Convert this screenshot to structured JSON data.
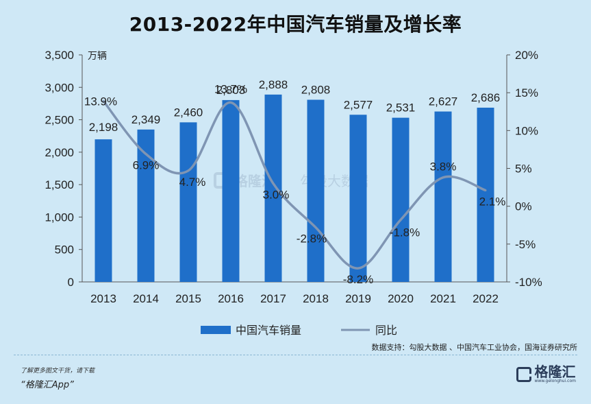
{
  "title": "2013-2022年中国汽车销量及增长率",
  "chart_data": {
    "type": "bar",
    "categories": [
      "2013",
      "2014",
      "2015",
      "2016",
      "2017",
      "2018",
      "2019",
      "2020",
      "2021",
      "2022"
    ],
    "series": [
      {
        "name": "中国汽车销量",
        "type": "bar",
        "axis": "left",
        "values": [
          2198,
          2349,
          2460,
          2803,
          2888,
          2808,
          2577,
          2531,
          2627,
          2686
        ],
        "labels": [
          "2,198",
          "2,349",
          "2,460",
          "2,803",
          "2,888",
          "2,808",
          "2,577",
          "2,531",
          "2,627",
          "2,686"
        ]
      },
      {
        "name": "同比",
        "type": "line",
        "axis": "right",
        "values": [
          13.9,
          6.9,
          4.7,
          13.7,
          3.0,
          -2.8,
          -8.2,
          -1.8,
          3.8,
          2.1
        ],
        "labels": [
          "13.9%",
          "6.9%",
          "4.7%",
          "13.7%",
          "3.0%",
          "-2.8%",
          "-8.2%",
          "-1.8%",
          "3.8%",
          "2.1%"
        ]
      }
    ],
    "y_left": {
      "unit": "万辆",
      "min": 0,
      "max": 3500,
      "ticks": [
        0,
        500,
        1000,
        1500,
        2000,
        2500,
        3000,
        3500
      ],
      "tick_labels": [
        "0",
        "500",
        "1,000",
        "1,500",
        "2,000",
        "2,500",
        "3,000",
        "3,500"
      ]
    },
    "y_right": {
      "min": -10,
      "max": 20,
      "ticks": [
        -10,
        -5,
        0,
        5,
        10,
        15,
        20
      ],
      "tick_labels": [
        "-10%",
        "-5%",
        "0%",
        "5%",
        "10%",
        "15%",
        "20%"
      ]
    },
    "legend_position": "bottom-center",
    "grid": false,
    "colors": {
      "bar": "#1f6fc9",
      "line": "#7f95b3"
    }
  },
  "source": "数据支持：勾股大数据 、中国汽车工业协会，国海证券研究所",
  "promo": {
    "line": "了解更多图文干货，请下载",
    "app": "“格隆汇App”"
  },
  "brand": {
    "name": "格隆汇",
    "url": "www.gelonghui.com"
  },
  "watermark": {
    "a": "格隆汇",
    "b": "勾股大数据"
  }
}
